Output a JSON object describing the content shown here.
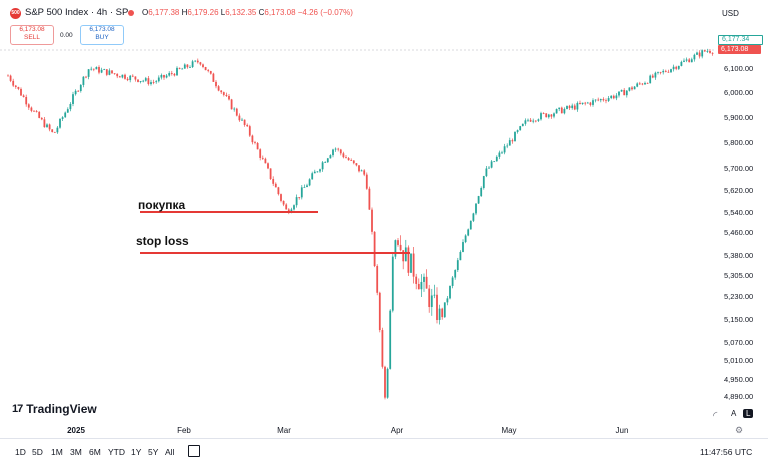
{
  "header": {
    "symbol_icon": "500",
    "title": "S&P 500 Index · 4h · SP",
    "ohlc": {
      "open_label": "O",
      "open": "6,177.38",
      "high_label": "H",
      "high": "6,179.26",
      "low_label": "L",
      "low": "6,132.35",
      "close_label": "C",
      "close": "6,173.08",
      "change": "−4.26 (−0.07%)"
    },
    "currency": "USD"
  },
  "trade": {
    "sell_price": "6,173.08",
    "sell_label": "SELL",
    "spread": "0.00",
    "buy_price": "6,173.08",
    "buy_label": "BUY"
  },
  "price_axis": {
    "labels": [
      "6,100.00",
      "6,000.00",
      "5,900.00",
      "5,800.00",
      "5,700.00",
      "5,620.00",
      "5,540.00",
      "5,460.00",
      "5,380.00",
      "5,305.00",
      "5,230.00",
      "5,150.00",
      "5,070.00",
      "5,010.00",
      "4,950.00",
      "4,890.00"
    ],
    "last_upper": "6,177.34",
    "last_price": "6,173.08",
    "last_upper_color": "#26a69a",
    "last_price_color": "#ef5350"
  },
  "time_axis": {
    "labels": [
      "2025",
      "Feb",
      "Mar",
      "Apr",
      "May",
      "Jun"
    ]
  },
  "annotations": {
    "buy_label": "покупка",
    "stop_label": "stop loss",
    "line_color": "#e53935"
  },
  "watermark": "TradingView",
  "scale_buttons": {
    "auto": "A",
    "log": "L"
  },
  "bottom": {
    "ranges": [
      "1D",
      "5D",
      "1M",
      "3M",
      "6M",
      "YTD",
      "1Y",
      "5Y",
      "All"
    ],
    "time": "11:47:56 UTC"
  },
  "colors": {
    "up": "#26a69a",
    "down": "#ef5350"
  },
  "chart_data": {
    "type": "candlestick",
    "y_axis_ticks": [
      6100,
      6000,
      5900,
      5800,
      5700,
      5620,
      5540,
      5460,
      5380,
      5305,
      5230,
      5150,
      5070,
      5010,
      4950,
      4890
    ],
    "x_axis_labels": [
      "2025",
      "Feb",
      "Mar",
      "Apr",
      "May",
      "Jun"
    ],
    "last_price": 6173.08,
    "approx_path": [
      {
        "x": "2025-01-01",
        "y": 6080
      },
      {
        "x": "2025-01-08",
        "y": 5920
      },
      {
        "x": "2025-01-13",
        "y": 5830
      },
      {
        "x": "2025-01-22",
        "y": 6100
      },
      {
        "x": "2025-02-07",
        "y": 6040
      },
      {
        "x": "2025-02-19",
        "y": 6130
      },
      {
        "x": "2025-03-03",
        "y": 5850
      },
      {
        "x": "2025-03-13",
        "y": 5540
      },
      {
        "x": "2025-03-25",
        "y": 5780
      },
      {
        "x": "2025-04-02",
        "y": 5670
      },
      {
        "x": "2025-04-04",
        "y": 5380
      },
      {
        "x": "2025-04-07",
        "y": 4850
      },
      {
        "x": "2025-04-09",
        "y": 5450
      },
      {
        "x": "2025-04-21",
        "y": 5150
      },
      {
        "x": "2025-05-02",
        "y": 5680
      },
      {
        "x": "2025-05-13",
        "y": 5890
      },
      {
        "x": "2025-06-05",
        "y": 5990
      },
      {
        "x": "2025-06-27",
        "y": 6173
      }
    ]
  }
}
